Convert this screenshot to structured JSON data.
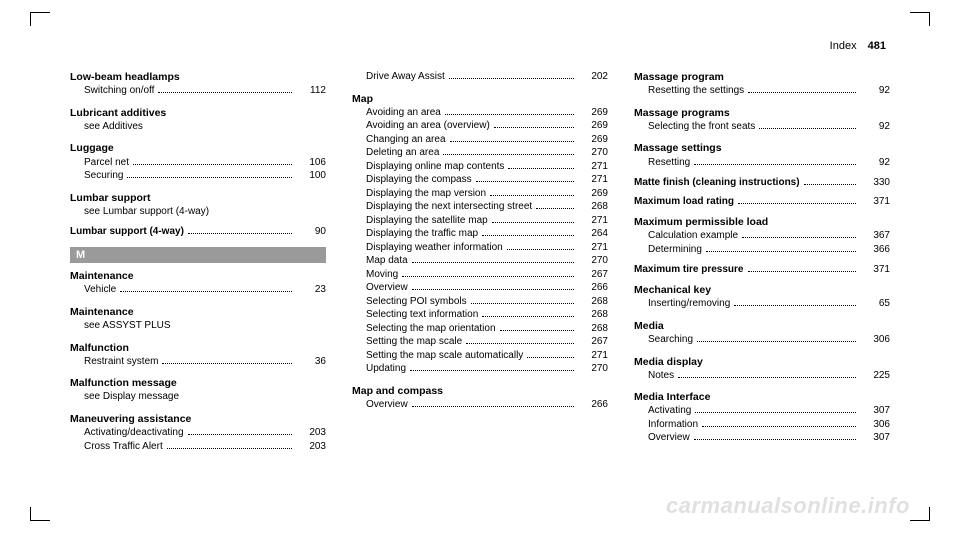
{
  "header": {
    "title": "Index",
    "page": "481"
  },
  "letter_bar": "M",
  "watermark": "carmanualsonline.info",
  "col1": [
    {
      "type": "topic",
      "text": "Low-beam headlamps"
    },
    {
      "type": "sub",
      "label": "Switching on/off",
      "page": "112"
    },
    {
      "type": "gap"
    },
    {
      "type": "topic",
      "text": "Lubricant additives"
    },
    {
      "type": "see",
      "text": "see Additives"
    },
    {
      "type": "gap"
    },
    {
      "type": "topic",
      "text": "Luggage"
    },
    {
      "type": "sub",
      "label": "Parcel net",
      "page": "106"
    },
    {
      "type": "sub",
      "label": "Securing",
      "page": "100"
    },
    {
      "type": "gap"
    },
    {
      "type": "topic",
      "text": "Lumbar support"
    },
    {
      "type": "see",
      "text": "see Lumbar support (4-way)"
    },
    {
      "type": "gap"
    },
    {
      "type": "topicrow",
      "label": "Lumbar support (4-way)",
      "page": "90"
    },
    {
      "type": "bar"
    },
    {
      "type": "topic",
      "text": "Maintenance"
    },
    {
      "type": "sub",
      "label": "Vehicle",
      "page": "23"
    },
    {
      "type": "gap"
    },
    {
      "type": "topic",
      "text": "Maintenance"
    },
    {
      "type": "see",
      "text": "see ASSYST PLUS"
    },
    {
      "type": "gap"
    },
    {
      "type": "topic",
      "text": "Malfunction"
    },
    {
      "type": "sub",
      "label": "Restraint system",
      "page": "36"
    },
    {
      "type": "gap"
    },
    {
      "type": "topic",
      "text": "Malfunction message"
    },
    {
      "type": "see",
      "text": "see Display message"
    },
    {
      "type": "gap"
    },
    {
      "type": "topic",
      "text": "Maneuvering assistance"
    },
    {
      "type": "sub",
      "label": "Activating/deactivating",
      "page": "203"
    },
    {
      "type": "sub",
      "label": "Cross Traffic Alert",
      "page": "203"
    }
  ],
  "col2": [
    {
      "type": "sub",
      "label": "Drive Away Assist",
      "page": "202"
    },
    {
      "type": "gap"
    },
    {
      "type": "topic",
      "text": "Map"
    },
    {
      "type": "sub",
      "label": "Avoiding an area",
      "page": "269"
    },
    {
      "type": "sub",
      "label": "Avoiding an area (overview)",
      "page": "269"
    },
    {
      "type": "sub",
      "label": "Changing an area",
      "page": "269"
    },
    {
      "type": "sub",
      "label": "Deleting an area",
      "page": "270"
    },
    {
      "type": "sub",
      "label": "Displaying online map contents",
      "page": "271"
    },
    {
      "type": "sub",
      "label": "Displaying the compass",
      "page": "271"
    },
    {
      "type": "sub",
      "label": "Displaying the map version",
      "page": "269"
    },
    {
      "type": "sub",
      "label": "Displaying the next intersecting street",
      "page": "268"
    },
    {
      "type": "sub",
      "label": "Displaying the satellite map",
      "page": "271"
    },
    {
      "type": "sub",
      "label": "Displaying the traffic map",
      "page": "264"
    },
    {
      "type": "sub",
      "label": "Displaying weather information",
      "page": "271"
    },
    {
      "type": "sub",
      "label": "Map data",
      "page": "270"
    },
    {
      "type": "sub",
      "label": "Moving",
      "page": "267"
    },
    {
      "type": "sub",
      "label": "Overview",
      "page": "266"
    },
    {
      "type": "sub",
      "label": "Selecting POI symbols",
      "page": "268"
    },
    {
      "type": "sub",
      "label": "Selecting text information",
      "page": "268"
    },
    {
      "type": "sub",
      "label": "Selecting the map orientation",
      "page": "268"
    },
    {
      "type": "sub",
      "label": "Setting the map scale",
      "page": "267"
    },
    {
      "type": "sub",
      "label": "Setting the map scale automatically",
      "page": "271"
    },
    {
      "type": "sub",
      "label": "Updating",
      "page": "270"
    },
    {
      "type": "gap"
    },
    {
      "type": "topic",
      "text": "Map and compass"
    },
    {
      "type": "sub",
      "label": "Overview",
      "page": "266"
    }
  ],
  "col3": [
    {
      "type": "topic",
      "text": "Massage program"
    },
    {
      "type": "sub",
      "label": "Resetting the settings",
      "page": "92"
    },
    {
      "type": "gap"
    },
    {
      "type": "topic",
      "text": "Massage programs"
    },
    {
      "type": "sub",
      "label": "Selecting the front seats",
      "page": "92"
    },
    {
      "type": "gap"
    },
    {
      "type": "topic",
      "text": "Massage settings"
    },
    {
      "type": "sub",
      "label": "Resetting",
      "page": "92"
    },
    {
      "type": "gap"
    },
    {
      "type": "topicrow",
      "label": "Matte finish (cleaning instructions)",
      "page": "330"
    },
    {
      "type": "gap"
    },
    {
      "type": "topicrow",
      "label": "Maximum load rating",
      "page": "371"
    },
    {
      "type": "gap"
    },
    {
      "type": "topic",
      "text": "Maximum permissible load"
    },
    {
      "type": "sub",
      "label": "Calculation example",
      "page": "367"
    },
    {
      "type": "sub",
      "label": "Determining",
      "page": "366"
    },
    {
      "type": "gap"
    },
    {
      "type": "topicrow",
      "label": "Maximum tire pressure",
      "page": "371"
    },
    {
      "type": "gap"
    },
    {
      "type": "topic",
      "text": "Mechanical key"
    },
    {
      "type": "sub",
      "label": "Inserting/removing",
      "page": "65"
    },
    {
      "type": "gap"
    },
    {
      "type": "topic",
      "text": "Media"
    },
    {
      "type": "sub",
      "label": "Searching",
      "page": "306"
    },
    {
      "type": "gap"
    },
    {
      "type": "topic",
      "text": "Media display"
    },
    {
      "type": "sub",
      "label": "Notes",
      "page": "225"
    },
    {
      "type": "gap"
    },
    {
      "type": "topic",
      "text": "Media Interface"
    },
    {
      "type": "sub",
      "label": "Activating",
      "page": "307"
    },
    {
      "type": "sub",
      "label": "Information",
      "page": "306"
    },
    {
      "type": "sub",
      "label": "Overview",
      "page": "307"
    }
  ]
}
